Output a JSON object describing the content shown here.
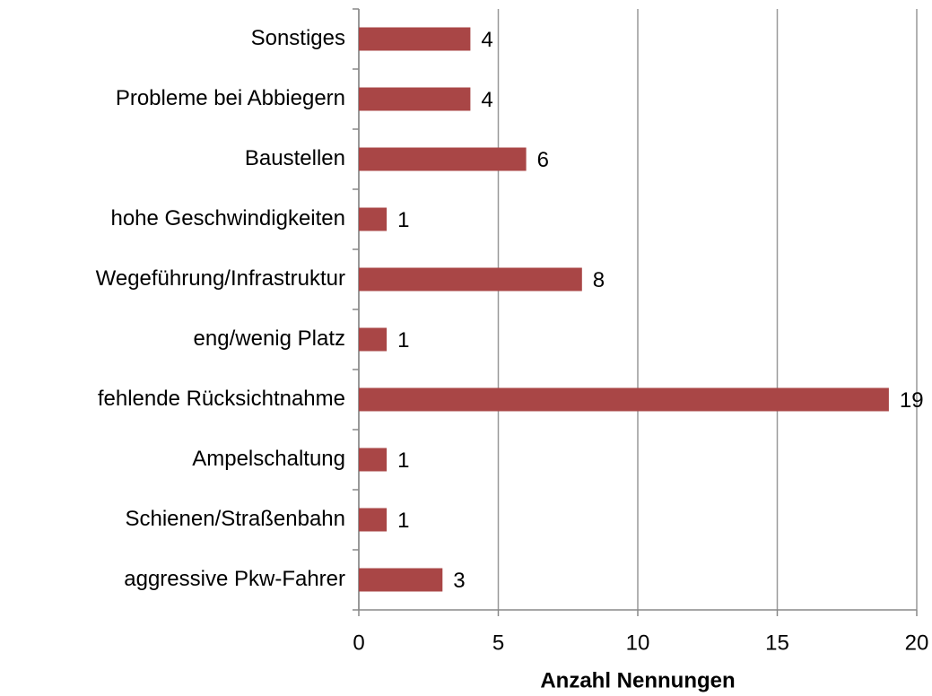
{
  "chart_data": {
    "type": "bar",
    "orientation": "horizontal",
    "xlabel": "Anzahl Nennungen",
    "categories": [
      "Sonstiges",
      "Probleme bei Abbiegern",
      "Baustellen",
      "hohe Geschwindigkeiten",
      "Wegeführung/Infrastruktur",
      "eng/wenig Platz",
      "fehlende Rücksichtnahme",
      "Ampelschaltung",
      "Schienen/Straßenbahn",
      "aggressive Pkw-Fahrer"
    ],
    "values": [
      4,
      4,
      6,
      1,
      8,
      1,
      19,
      1,
      1,
      3
    ],
    "color": "#a94646",
    "xlim": [
      0,
      20
    ],
    "xticks": [
      0,
      5,
      10,
      15,
      20
    ],
    "grid": true
  }
}
